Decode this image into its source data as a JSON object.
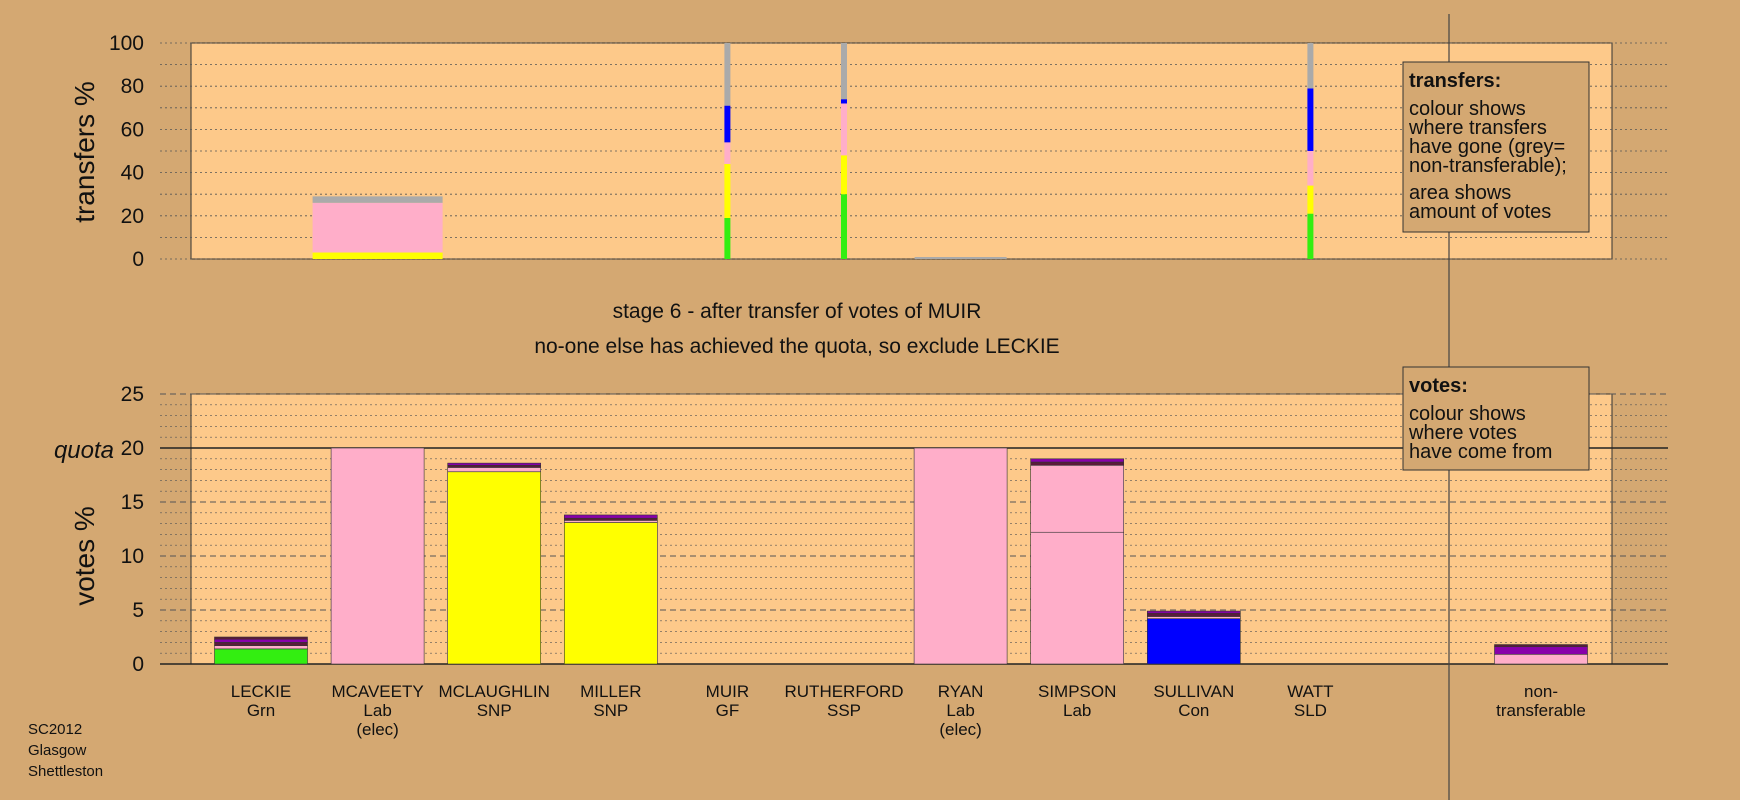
{
  "stage_title": "stage 6 - after transfer of votes of MUIR",
  "stage_subtitle": "no-one else has achieved the quota, so exclude LECKIE",
  "legend_transfers": {
    "title": "transfers:",
    "lines": [
      "colour shows",
      "where transfers",
      "have gone (grey=",
      "non-transferable);",
      "area shows",
      "amount of votes"
    ]
  },
  "legend_votes": {
    "title": "votes:",
    "lines": [
      "colour shows",
      "where votes",
      "have come from"
    ]
  },
  "corner": [
    "SC2012",
    "Glasgow",
    "Shettleston"
  ],
  "colors": {
    "background": "#d4a872",
    "plot": "#fdc98a",
    "Grn": "#33ee11",
    "Lab": "#ffaec9",
    "SNP": "#ffff00",
    "Con": "#0000ff",
    "SSP": "#ff6633",
    "GF": "#8800aa",
    "SLD": "#5a1a3a",
    "non-transferable": "#aaaaaa",
    "legend_box": "#d4a872"
  },
  "chart_data": [
    {
      "type": "bar",
      "name": "transfers",
      "ylabel": "transfers %",
      "ylim": [
        0,
        100
      ],
      "yticks": [
        0,
        20,
        40,
        60,
        80,
        100
      ],
      "categories": [
        "LECKIE",
        "MCAVEETY",
        "MCLAUGHLIN",
        "MILLER",
        "MUIR",
        "RUTHERFORD",
        "RYAN",
        "SIMPSON",
        "SULLIVAN",
        "WATT"
      ],
      "bars": [
        {
          "candidate": "MCAVEETY",
          "width": "wide",
          "segments": [
            {
              "party": "SNP",
              "value": 3
            },
            {
              "party": "Lab",
              "value": 23
            },
            {
              "party": "non-transferable",
              "value": 3
            }
          ]
        },
        {
          "candidate": "MUIR",
          "width": "thin",
          "segments": [
            {
              "party": "Grn",
              "value": 19
            },
            {
              "party": "SNP",
              "value": 25
            },
            {
              "party": "Lab",
              "value": 10
            },
            {
              "party": "Con",
              "value": 17
            },
            {
              "party": "non-transferable",
              "value": 29
            }
          ]
        },
        {
          "candidate": "RUTHERFORD",
          "width": "thin",
          "segments": [
            {
              "party": "Grn",
              "value": 30
            },
            {
              "party": "SNP",
              "value": 18
            },
            {
              "party": "Lab",
              "value": 24
            },
            {
              "party": "Con",
              "value": 2
            },
            {
              "party": "non-transferable",
              "value": 26
            }
          ]
        },
        {
          "candidate": "WATT",
          "width": "thin",
          "segments": [
            {
              "party": "Grn",
              "value": 21
            },
            {
              "party": "SNP",
              "value": 13
            },
            {
              "party": "Lab",
              "value": 16
            },
            {
              "party": "Con",
              "value": 29
            },
            {
              "party": "non-transferable",
              "value": 21
            }
          ]
        }
      ]
    },
    {
      "type": "bar",
      "name": "votes",
      "ylabel": "votes %",
      "ylim": [
        0,
        25
      ],
      "yticks": [
        0,
        5,
        10,
        15,
        20,
        25
      ],
      "quota": 20,
      "quota_label": "quota",
      "candidates": [
        {
          "name": "LECKIE",
          "party": "Grn",
          "note": "",
          "segments": [
            {
              "party": "Grn",
              "value": 1.4
            },
            {
              "party": "Lab",
              "value": 0.3
            },
            {
              "party": "SLD",
              "value": 0.3
            },
            {
              "party": "GF",
              "value": 0.3
            },
            {
              "party": "SLD",
              "value": 0.2
            }
          ]
        },
        {
          "name": "MCAVEETY",
          "party": "Lab",
          "note": "(elec)",
          "segments": [
            {
              "party": "Lab",
              "value": 20
            }
          ]
        },
        {
          "name": "MCLAUGHLIN",
          "party": "SNP",
          "note": "",
          "segments": [
            {
              "party": "SNP",
              "value": 17.8
            },
            {
              "party": "Lab",
              "value": 0.4
            },
            {
              "party": "SLD",
              "value": 0.2
            },
            {
              "party": "GF",
              "value": 0.2
            }
          ]
        },
        {
          "name": "MILLER",
          "party": "SNP",
          "note": "",
          "segments": [
            {
              "party": "SNP",
              "value": 13.1
            },
            {
              "party": "Lab",
              "value": 0.2
            },
            {
              "party": "SLD",
              "value": 0.2
            },
            {
              "party": "GF",
              "value": 0.3
            }
          ]
        },
        {
          "name": "MUIR",
          "party": "GF",
          "note": "",
          "segments": []
        },
        {
          "name": "RUTHERFORD",
          "party": "SSP",
          "note": "",
          "segments": []
        },
        {
          "name": "RYAN",
          "party": "Lab",
          "note": "(elec)",
          "segments": [
            {
              "party": "Lab",
              "value": 20
            }
          ]
        },
        {
          "name": "SIMPSON",
          "party": "Lab",
          "note": "",
          "segments": [
            {
              "party": "Lab",
              "value": 12.2
            },
            {
              "party": "Lab",
              "value": 6.2
            },
            {
              "party": "SLD",
              "value": 0.3
            },
            {
              "party": "GF",
              "value": 0.3
            }
          ]
        },
        {
          "name": "SULLIVAN",
          "party": "Con",
          "note": "",
          "segments": [
            {
              "party": "Con",
              "value": 4.2
            },
            {
              "party": "Lab",
              "value": 0.2
            },
            {
              "party": "SLD",
              "value": 0.3
            },
            {
              "party": "GF",
              "value": 0.2
            }
          ]
        },
        {
          "name": "WATT",
          "party": "SLD",
          "note": "",
          "segments": []
        }
      ],
      "nontransferable": {
        "label_lines": [
          "non-",
          "transferable"
        ],
        "segments": [
          {
            "party": "Lab",
            "value": 0.9
          },
          {
            "party": "GF",
            "value": 0.7
          },
          {
            "party": "SLD",
            "value": 0.2
          }
        ]
      }
    }
  ]
}
